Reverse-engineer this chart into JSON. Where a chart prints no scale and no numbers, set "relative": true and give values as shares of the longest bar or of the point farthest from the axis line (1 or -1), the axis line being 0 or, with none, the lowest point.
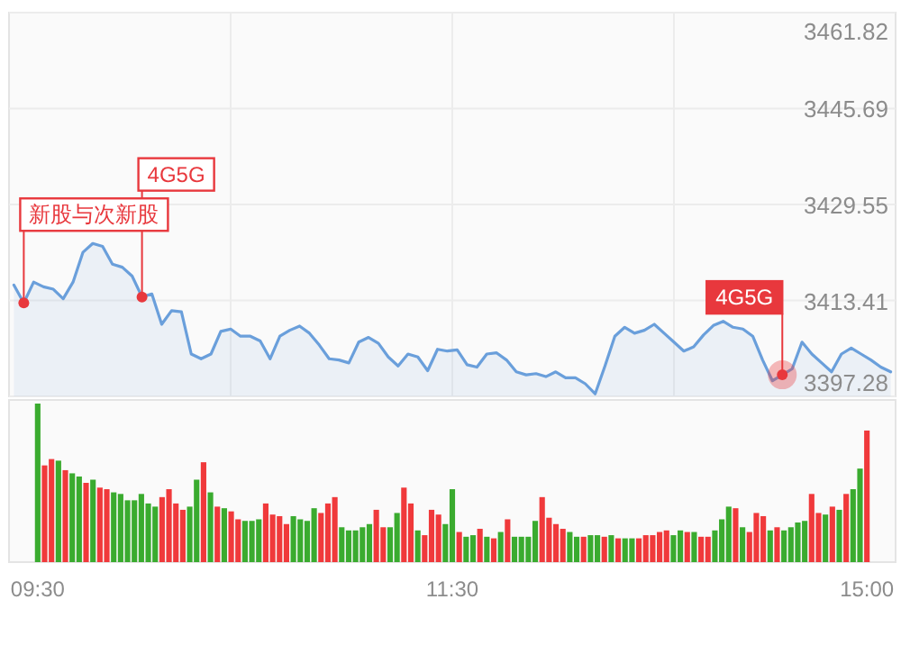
{
  "chart_data": [
    {
      "type": "area",
      "color": "#6a9fdb",
      "ylim": [
        3397.28,
        3461.82
      ],
      "yticks": [
        3397.28,
        3413.41,
        3429.55,
        3445.69,
        3461.82
      ],
      "tick_labels": "y",
      "grid": true,
      "categories": [
        null,
        null,
        null,
        null,
        null,
        null,
        null,
        null,
        null,
        null,
        null,
        null,
        null,
        null,
        null,
        null,
        null,
        null,
        null,
        null,
        null,
        null,
        null,
        null,
        null,
        null,
        null,
        null,
        null,
        null,
        null,
        null,
        null,
        null,
        null,
        null,
        null,
        null,
        null,
        null,
        null,
        null,
        null,
        null,
        null,
        null,
        null,
        null,
        null,
        null,
        null,
        null,
        null,
        null,
        null,
        null,
        null,
        null,
        null,
        null,
        null,
        null,
        null,
        null,
        null,
        null,
        null,
        null,
        null,
        null,
        null,
        null,
        null,
        null,
        null,
        null,
        null,
        null,
        null,
        null,
        null,
        null,
        null,
        null,
        null,
        null,
        null,
        null,
        null,
        null
      ],
      "values": [
        3416.0,
        3413.0,
        3416.5,
        3415.7,
        3415.3,
        3413.7,
        3416.5,
        3421.5,
        3423.0,
        3422.5,
        3419.5,
        3419.0,
        3417.5,
        3414.0,
        3414.5,
        3409.4,
        3411.7,
        3411.5,
        3404.4,
        3403.6,
        3404.4,
        3408.2,
        3408.6,
        3407.4,
        3407.4,
        3406.6,
        3403.6,
        3407.4,
        3408.4,
        3409.1,
        3407.9,
        3405.9,
        3403.6,
        3403.4,
        3402.9,
        3406.4,
        3407.2,
        3406.2,
        3403.9,
        3402.4,
        3404.4,
        3403.9,
        3401.6,
        3405.2,
        3404.9,
        3405.1,
        3402.6,
        3402.2,
        3404.4,
        3404.6,
        3403.4,
        3401.4,
        3400.9,
        3401.1,
        3400.6,
        3401.4,
        3400.4,
        3400.4,
        3399.4,
        3397.7,
        3402.4,
        3407.4,
        3408.9,
        3407.9,
        3408.4,
        3409.4,
        3407.9,
        3406.4,
        3404.9,
        3405.6,
        3407.6,
        3409.2,
        3409.9,
        3408.9,
        3408.6,
        3407.4,
        3403.4,
        3399.9,
        3400.9,
        3401.9,
        3406.4,
        3404.4,
        3402.9,
        3401.4,
        3404.4,
        3405.4,
        3404.4,
        3403.4,
        3402.2,
        3401.4
      ],
      "annotations": [
        "新股与次新股",
        "4G5G",
        "4G5G"
      ]
    },
    {
      "type": "bar",
      "relative": true,
      "tick_labels": "x",
      "categories": [
        "09:30",
        null,
        null,
        null,
        null,
        null,
        null,
        null,
        null,
        null,
        null,
        null,
        null,
        null,
        null,
        null,
        null,
        null,
        null,
        null,
        null,
        null,
        null,
        null,
        null,
        null,
        null,
        null,
        null,
        null,
        null,
        null,
        null,
        null,
        null,
        null,
        null,
        null,
        null,
        null,
        null,
        null,
        null,
        null,
        null,
        null,
        null,
        null,
        null,
        null,
        null,
        null,
        null,
        null,
        null,
        null,
        null,
        null,
        null,
        null,
        "11:30",
        null,
        null,
        null,
        null,
        null,
        null,
        null,
        null,
        null,
        null,
        null,
        null,
        null,
        null,
        null,
        null,
        null,
        null,
        null,
        null,
        null,
        null,
        null,
        null,
        null,
        null,
        null,
        null,
        null,
        null,
        null,
        null,
        null,
        null,
        null,
        null,
        null,
        null,
        null,
        null,
        null,
        null,
        null,
        null,
        null,
        null,
        null,
        null,
        null,
        null,
        null,
        null,
        null,
        null,
        null,
        null,
        null,
        null,
        null,
        "15:00"
      ],
      "values": [
        1.0,
        0.61,
        0.65,
        0.64,
        0.58,
        0.56,
        0.54,
        0.5,
        0.52,
        0.47,
        0.46,
        0.44,
        0.43,
        0.39,
        0.39,
        0.43,
        0.37,
        0.35,
        0.41,
        0.46,
        0.37,
        0.33,
        0.35,
        0.52,
        0.63,
        0.44,
        0.35,
        0.34,
        0.32,
        0.27,
        0.26,
        0.26,
        0.27,
        0.37,
        0.3,
        0.29,
        0.24,
        0.29,
        0.27,
        0.26,
        0.34,
        0.31,
        0.37,
        0.41,
        0.22,
        0.2,
        0.2,
        0.22,
        0.24,
        0.33,
        0.22,
        0.22,
        0.31,
        0.47,
        0.37,
        0.2,
        0.17,
        0.33,
        0.3,
        0.24,
        0.46,
        0.19,
        0.16,
        0.17,
        0.21,
        0.16,
        0.15,
        0.19,
        0.27,
        0.16,
        0.16,
        0.16,
        0.26,
        0.41,
        0.28,
        0.24,
        0.21,
        0.19,
        0.16,
        0.16,
        0.17,
        0.17,
        0.16,
        0.17,
        0.15,
        0.15,
        0.15,
        0.15,
        0.17,
        0.17,
        0.19,
        0.2,
        0.17,
        0.2,
        0.19,
        0.19,
        0.16,
        0.16,
        0.2,
        0.27,
        0.35,
        0.34,
        0.22,
        0.19,
        0.31,
        0.29,
        0.2,
        0.22,
        0.2,
        0.22,
        0.25,
        0.26,
        0.43,
        0.31,
        0.3,
        0.35,
        0.33,
        0.43,
        0.46,
        0.59,
        0.83
      ],
      "colors": [
        "#3aab2f",
        "#f0393b",
        "#f0393b",
        "#3aab2f",
        "#f0393b",
        "#3aab2f",
        "#3aab2f",
        "#f0393b",
        "#3aab2f",
        "#f0393b",
        "#f0393b",
        "#3aab2f",
        "#3aab2f",
        "#3aab2f",
        "#3aab2f",
        "#3aab2f",
        "#3aab2f",
        "#3aab2f",
        "#f0393b",
        "#f0393b",
        "#f0393b",
        "#f0393b",
        "#3aab2f",
        "#3aab2f",
        "#f0393b",
        "#3aab2f",
        "#f0393b",
        "#3aab2f",
        "#f0393b",
        "#f0393b",
        "#3aab2f",
        "#3aab2f",
        "#3aab2f",
        "#f0393b",
        "#f0393b",
        "#f0393b",
        "#f0393b",
        "#3aab2f",
        "#3aab2f",
        "#3aab2f",
        "#3aab2f",
        "#f0393b",
        "#f0393b",
        "#f0393b",
        "#3aab2f",
        "#3aab2f",
        "#3aab2f",
        "#3aab2f",
        "#3aab2f",
        "#f0393b",
        "#f0393b",
        "#3aab2f",
        "#3aab2f",
        "#f0393b",
        "#f0393b",
        "#3aab2f",
        "#f0393b",
        "#f0393b",
        "#f0393b",
        "#3aab2f",
        "#3aab2f",
        "#f0393b",
        "#3aab2f",
        "#3aab2f",
        "#f0393b",
        "#3aab2f",
        "#f0393b",
        "#3aab2f",
        "#f0393b",
        "#3aab2f",
        "#3aab2f",
        "#3aab2f",
        "#3aab2f",
        "#f0393b",
        "#f0393b",
        "#f0393b",
        "#f0393b",
        "#3aab2f",
        "#3aab2f",
        "#f0393b",
        "#3aab2f",
        "#3aab2f",
        "#f0393b",
        "#3aab2f",
        "#f0393b",
        "#3aab2f",
        "#3aab2f",
        "#f0393b",
        "#f0393b",
        "#f0393b",
        "#f0393b",
        "#f0393b",
        "#3aab2f",
        "#3aab2f",
        "#f0393b",
        "#3aab2f",
        "#f0393b",
        "#f0393b",
        "#3aab2f",
        "#3aab2f",
        "#3aab2f",
        "#f0393b",
        "#3aab2f",
        "#f0393b",
        "#f0393b",
        "#f0393b",
        "#3aab2f",
        "#f0393b",
        "#3aab2f",
        "#3aab2f",
        "#3aab2f",
        "#3aab2f",
        "#f0393b",
        "#f0393b",
        "#3aab2f",
        "#f0393b",
        "#3aab2f",
        "#f0393b",
        "#3aab2f",
        "#3aab2f",
        "#f0393b"
      ]
    }
  ]
}
